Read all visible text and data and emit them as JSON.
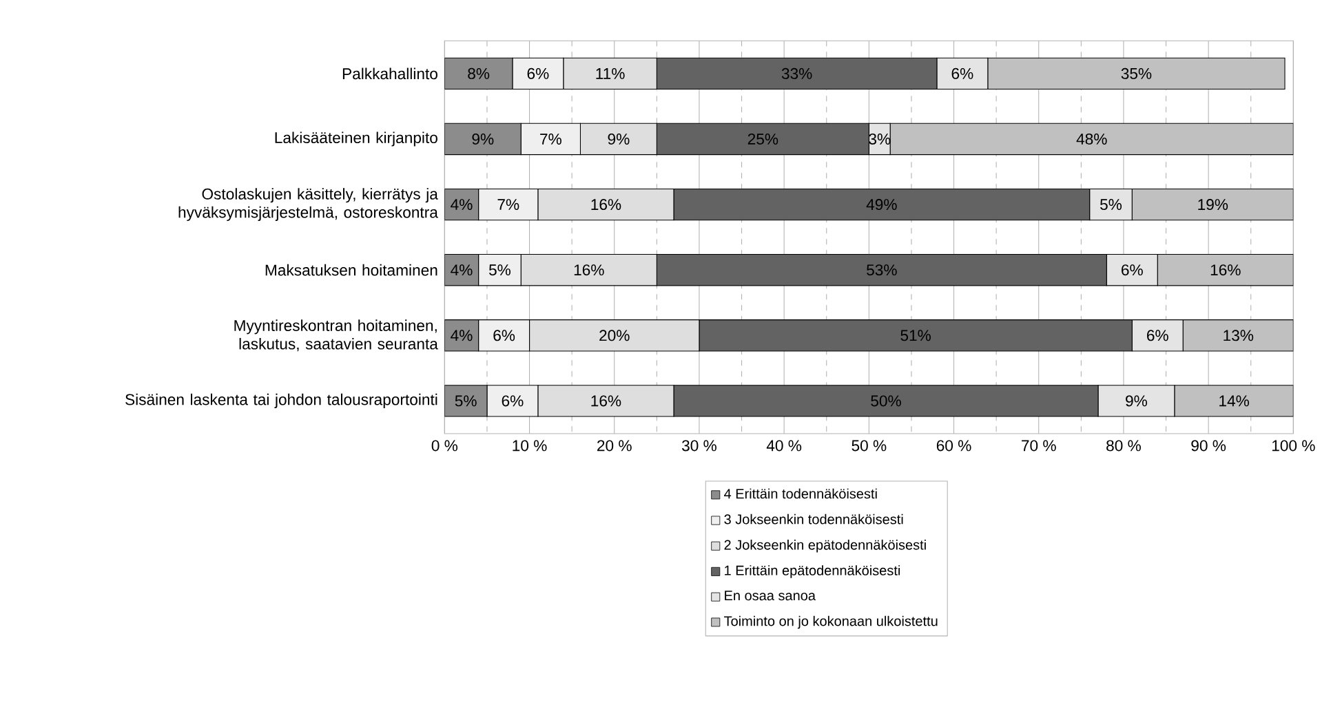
{
  "chart_data": {
    "type": "bar",
    "orientation": "horizontal",
    "stacked": true,
    "grid": "x",
    "legend": "bottom",
    "categories": [
      "Palkkahallinto",
      "Lakisääteinen kirjanpito",
      "Ostolaskujen käsittely, kierrätys ja hyväksymisjärjestelmä, ostoreskontra",
      "Maksatuksen hoitaminen",
      "Myyntireskontran hoitaminen, laskutus, saatavien seuranta",
      "Sisäinen laskenta tai johdon talousraportointi"
    ],
    "xlim": [
      0,
      100
    ],
    "xticks": [
      {
        "value": 0,
        "label": "0 %"
      },
      {
        "value": 5,
        "label": null
      },
      {
        "value": 10,
        "label": "10 %"
      },
      {
        "value": 15,
        "label": null
      },
      {
        "value": 20,
        "label": "20 %"
      },
      {
        "value": 25,
        "label": null
      },
      {
        "value": 30,
        "label": "30 %"
      },
      {
        "value": 35,
        "label": null
      },
      {
        "value": 40,
        "label": "40 %"
      },
      {
        "value": 45,
        "label": null
      },
      {
        "value": 50,
        "label": "50 %"
      },
      {
        "value": 55,
        "label": null
      },
      {
        "value": 60,
        "label": "60 %"
      },
      {
        "value": 65,
        "label": null
      },
      {
        "value": 70,
        "label": "70 %"
      },
      {
        "value": 75,
        "label": null
      },
      {
        "value": 80,
        "label": "80 %"
      },
      {
        "value": 85,
        "label": null
      },
      {
        "value": 90,
        "label": "90 %"
      },
      {
        "value": 95,
        "label": null
      },
      {
        "value": 100,
        "label": "100 %"
      }
    ],
    "series": [
      {
        "name": "4 Erittäin todennäköisesti",
        "color": "#8c8c8c",
        "values": [
          8,
          9,
          4,
          4,
          4,
          5
        ],
        "value_labels": [
          "8%",
          "9%",
          "4%",
          "4%",
          "4%",
          "5%"
        ]
      },
      {
        "name": "3 Jokseenkin todennäköisesti",
        "color": "#efefef",
        "values": [
          6,
          7,
          7,
          5,
          6,
          6
        ],
        "value_labels": [
          "6%",
          "7%",
          "7%",
          "5%",
          "6%",
          "6%"
        ]
      },
      {
        "name": "2 Jokseenkin epätodennäköisesti",
        "color": "#dedede",
        "values": [
          11,
          9,
          16,
          16,
          20,
          16
        ],
        "value_labels": [
          "11%",
          "9%",
          "16%",
          "16%",
          "20%",
          "16%"
        ]
      },
      {
        "name": "1 Erittäin epätodennäköisesti",
        "color": "#636363",
        "values": [
          33,
          25,
          49,
          53,
          51,
          50
        ],
        "value_labels": [
          "33%",
          "25%",
          "49%",
          "53%",
          "51%",
          "50%"
        ]
      },
      {
        "name": "En osaa sanoa",
        "color": "#e4e4e4",
        "values": [
          6,
          2.5,
          5,
          6,
          6,
          9
        ],
        "value_labels": [
          "6%",
          "3%",
          "5%",
          "6%",
          "6%",
          "9%"
        ]
      },
      {
        "name": "Toiminto on jo kokonaan ulkoistettu",
        "color": "#c0c0c0",
        "values": [
          35,
          47.5,
          19,
          16,
          13,
          14
        ],
        "value_labels": [
          "35%",
          "48%",
          "19%",
          "16%",
          "13%",
          "14%"
        ]
      }
    ]
  }
}
